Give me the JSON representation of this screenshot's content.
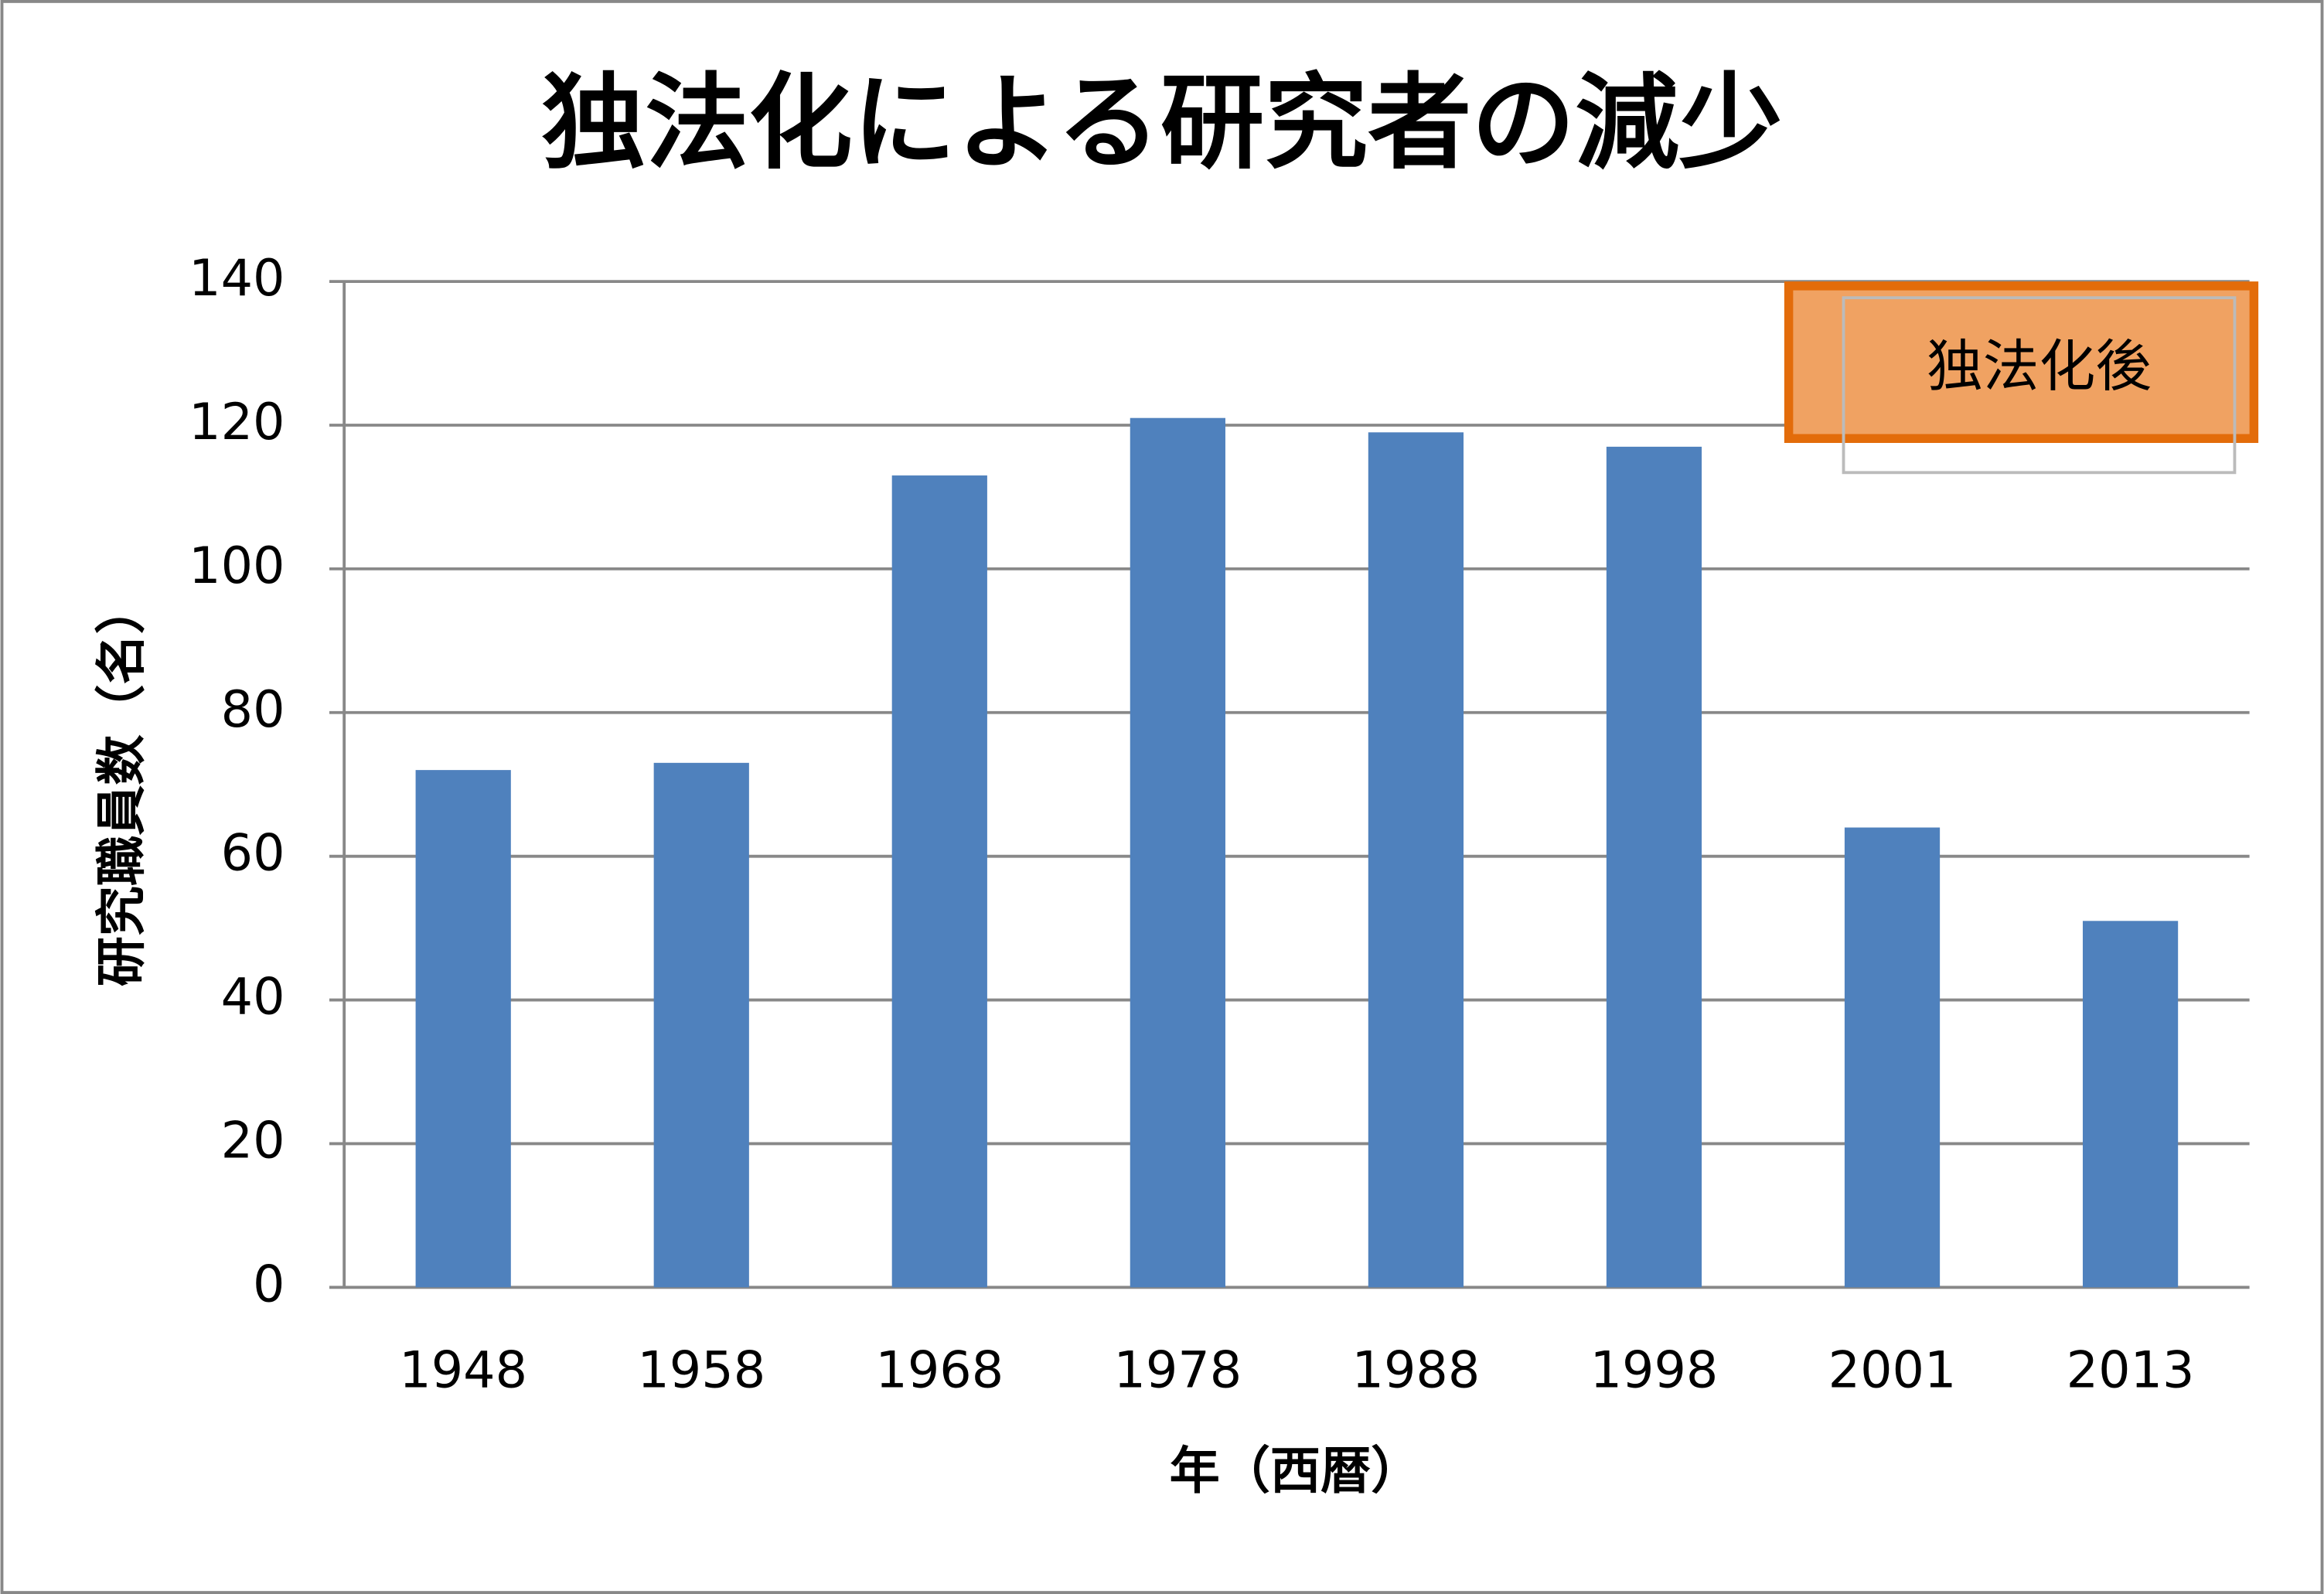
{
  "chart_data": {
    "type": "bar",
    "title": "独法化による研究者の減少",
    "categories": [
      "1948",
      "1958",
      "1968",
      "1978",
      "1988",
      "1998",
      "2001",
      "2013"
    ],
    "values": [
      72,
      73,
      113,
      121,
      119,
      117,
      64,
      51
    ],
    "color": "#4f81bd",
    "ylim": [
      0,
      140
    ],
    "yticks": [
      0,
      20,
      40,
      60,
      80,
      100,
      120,
      140
    ],
    "grid": true,
    "x_label": "年（西暦）",
    "y_label": "研究職員数（名）",
    "annotation": "独法化後"
  }
}
